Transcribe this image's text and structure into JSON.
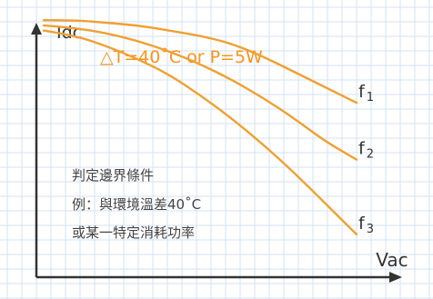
{
  "chart_data": {
    "type": "line",
    "title": "△T=40˚C or P=5W",
    "ylabel": "Idc",
    "xlabel": "Vac",
    "grid": true,
    "series": [
      {
        "name": "f1",
        "x": [
          0,
          0.1,
          0.2,
          0.3,
          0.4,
          0.5,
          0.6,
          0.7,
          0.8,
          0.9,
          1.0
        ],
        "y": [
          0.95,
          0.95,
          0.94,
          0.93,
          0.91,
          0.89,
          0.86,
          0.81,
          0.75,
          0.69,
          0.63
        ]
      },
      {
        "name": "f2",
        "x": [
          0,
          0.1,
          0.2,
          0.3,
          0.4,
          0.5,
          0.6,
          0.7,
          0.8,
          0.9,
          1.0
        ],
        "y": [
          0.93,
          0.92,
          0.9,
          0.87,
          0.83,
          0.78,
          0.72,
          0.65,
          0.57,
          0.48,
          0.41
        ]
      },
      {
        "name": "f3",
        "x": [
          0,
          0.1,
          0.2,
          0.3,
          0.4,
          0.5,
          0.6,
          0.7,
          0.8,
          0.9,
          1.0
        ],
        "y": [
          0.91,
          0.89,
          0.85,
          0.8,
          0.74,
          0.66,
          0.57,
          0.47,
          0.36,
          0.24,
          0.12
        ]
      }
    ],
    "annotation": [
      "判定邊界條件",
      "例：與環境溫差40˚C",
      "或某一特定消耗功率"
    ],
    "colors": {
      "curve": "#f0a030",
      "title": "#f7931e",
      "axis": "#333333",
      "grid": "#d3e3f3",
      "text": "#444444"
    }
  }
}
